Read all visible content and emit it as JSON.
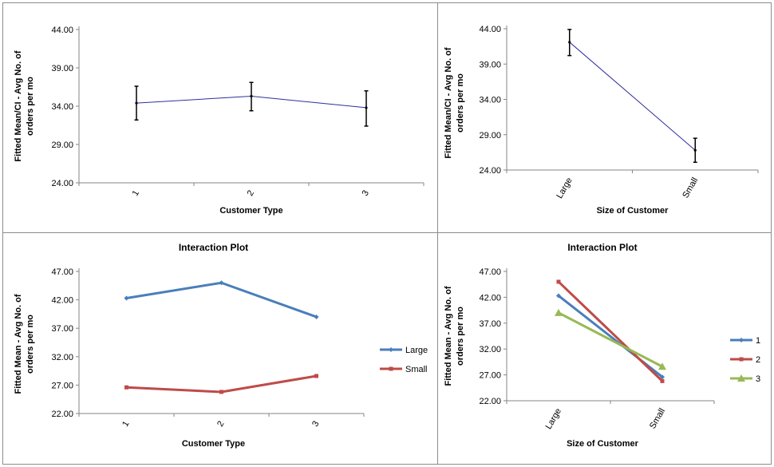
{
  "chart_data": [
    {
      "type": "line",
      "title": "",
      "xlabel": "Customer Type",
      "ylabel": "Fitted Mean/CI - Avg No. of orders per mo",
      "categories": [
        "1",
        "2",
        "3"
      ],
      "ylim": [
        24,
        44
      ],
      "yticks": [
        "24.00",
        "29.00",
        "34.00",
        "39.00",
        "44.00"
      ],
      "series": [
        {
          "name": "Fitted Mean",
          "color": "#2e2e9e",
          "values": [
            34.4,
            35.3,
            33.8
          ],
          "ci_low": [
            32.2,
            33.4,
            31.4
          ],
          "ci_high": [
            36.6,
            37.1,
            36.0
          ]
        }
      ],
      "legend": []
    },
    {
      "type": "line",
      "title": "",
      "xlabel": "Size of Customer",
      "ylabel": "Fitted Mean/CI - Avg No. of orders per mo",
      "categories": [
        "Large",
        "Small"
      ],
      "ylim": [
        24,
        44
      ],
      "yticks": [
        "24.00",
        "29.00",
        "34.00",
        "39.00",
        "44.00"
      ],
      "series": [
        {
          "name": "Fitted Mean",
          "color": "#2e2e9e",
          "values": [
            42.1,
            26.8
          ],
          "ci_low": [
            40.2,
            25.1
          ],
          "ci_high": [
            43.9,
            28.5
          ]
        }
      ],
      "legend": []
    },
    {
      "type": "line",
      "title": "Interaction Plot",
      "xlabel": "Customer Type",
      "ylabel": "Fitted Mean - Avg No. of orders per mo",
      "categories": [
        "1",
        "2",
        "3"
      ],
      "ylim": [
        22,
        47
      ],
      "yticks": [
        "22.00",
        "27.00",
        "32.00",
        "37.00",
        "42.00",
        "47.00"
      ],
      "series": [
        {
          "name": "Large",
          "color": "#4a7ebb",
          "marker": "diamond",
          "values": [
            42.3,
            45.0,
            39.0
          ]
        },
        {
          "name": "Small",
          "color": "#be4b48",
          "marker": "square",
          "values": [
            26.6,
            25.8,
            28.6
          ]
        }
      ],
      "legend": [
        "Large",
        "Small"
      ]
    },
    {
      "type": "line",
      "title": "Interaction Plot",
      "xlabel": "Size of Customer",
      "ylabel": "Fitted Mean - Avg No. of orders per mo",
      "categories": [
        "Large",
        "Small"
      ],
      "ylim": [
        22,
        47
      ],
      "yticks": [
        "22.00",
        "27.00",
        "32.00",
        "37.00",
        "42.00",
        "47.00"
      ],
      "series": [
        {
          "name": "1",
          "color": "#4a7ebb",
          "marker": "diamond",
          "values": [
            42.3,
            26.6
          ]
        },
        {
          "name": "2",
          "color": "#be4b48",
          "marker": "square",
          "values": [
            45.0,
            25.8
          ]
        },
        {
          "name": "3",
          "color": "#98b954",
          "marker": "triangle",
          "values": [
            39.0,
            28.6
          ]
        }
      ],
      "legend": [
        "1",
        "2",
        "3"
      ]
    }
  ]
}
